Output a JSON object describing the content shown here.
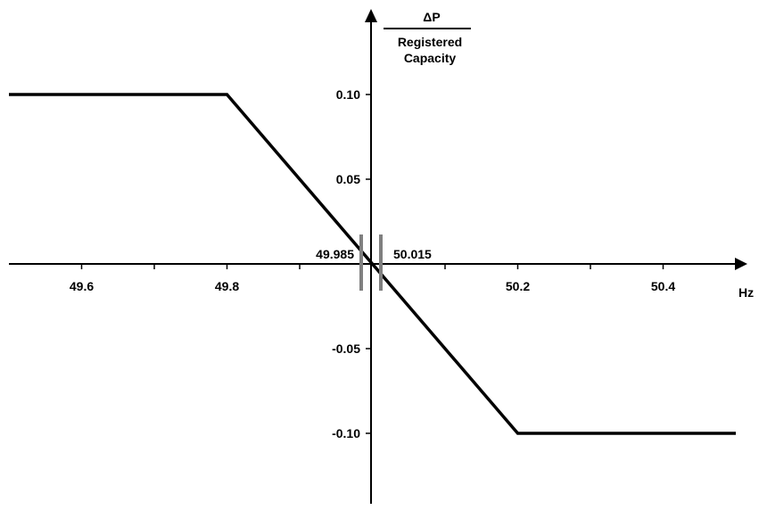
{
  "chart_data": {
    "type": "line",
    "xlabel": "Hz",
    "ylabel": {
      "numerator": "ΔP",
      "denominator_line1": "Registered",
      "denominator_line2": "Capacity"
    },
    "xlim": [
      49.5,
      50.5
    ],
    "ylim": [
      -0.15,
      0.15
    ],
    "x_ticks": [
      49.6,
      49.7,
      49.8,
      49.9,
      50.1,
      50.2,
      50.3,
      50.4
    ],
    "x_tick_labels": [
      {
        "x": 49.6,
        "text": "49.6"
      },
      {
        "x": 49.8,
        "text": "49.8"
      },
      {
        "x": 50.2,
        "text": "50.2"
      },
      {
        "x": 50.4,
        "text": "50.4"
      }
    ],
    "y_ticks": [
      0.1,
      0.05,
      -0.05,
      -0.1
    ],
    "y_tick_labels": [
      {
        "y": 0.1,
        "text": "0.10"
      },
      {
        "y": 0.05,
        "text": "0.05"
      },
      {
        "y": -0.05,
        "text": "-0.05"
      },
      {
        "y": -0.1,
        "text": "-0.10"
      }
    ],
    "series": [
      {
        "color": "#000000",
        "points": [
          {
            "x": 49.5,
            "y": 0.1
          },
          {
            "x": 49.8,
            "y": 0.1
          },
          {
            "x": 50.2,
            "y": -0.1
          },
          {
            "x": 50.5,
            "y": -0.1
          }
        ]
      }
    ],
    "deadband_markers": [
      {
        "x": 49.985,
        "label": "49.985",
        "color": "#808080"
      },
      {
        "x": 50.015,
        "label": "50.015",
        "color": "#808080"
      }
    ],
    "grid": false,
    "legend": "none"
  }
}
